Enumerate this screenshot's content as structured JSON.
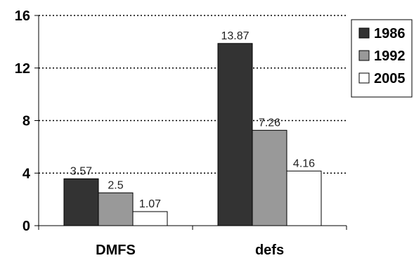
{
  "chart_data": {
    "type": "bar",
    "categories": [
      "DMFS",
      "defs"
    ],
    "series": [
      {
        "name": "1986",
        "values": [
          3.57,
          13.87
        ],
        "color": "#333333"
      },
      {
        "name": "1992",
        "values": [
          2.5,
          7.26
        ],
        "color": "#999999"
      },
      {
        "name": "2005",
        "values": [
          1.07,
          4.16
        ],
        "color": "#ffffff"
      }
    ],
    "data_labels": [
      [
        "3.57",
        "13.87"
      ],
      [
        "2.5",
        "7.26"
      ],
      [
        "1.07",
        "4.16"
      ]
    ],
    "yticks": [
      "0",
      "4",
      "8",
      "12",
      "16"
    ],
    "ylim": [
      0,
      16
    ],
    "title": "",
    "xlabel": "",
    "ylabel": "",
    "grid": "horizontal dotted",
    "legend_position": "right"
  }
}
